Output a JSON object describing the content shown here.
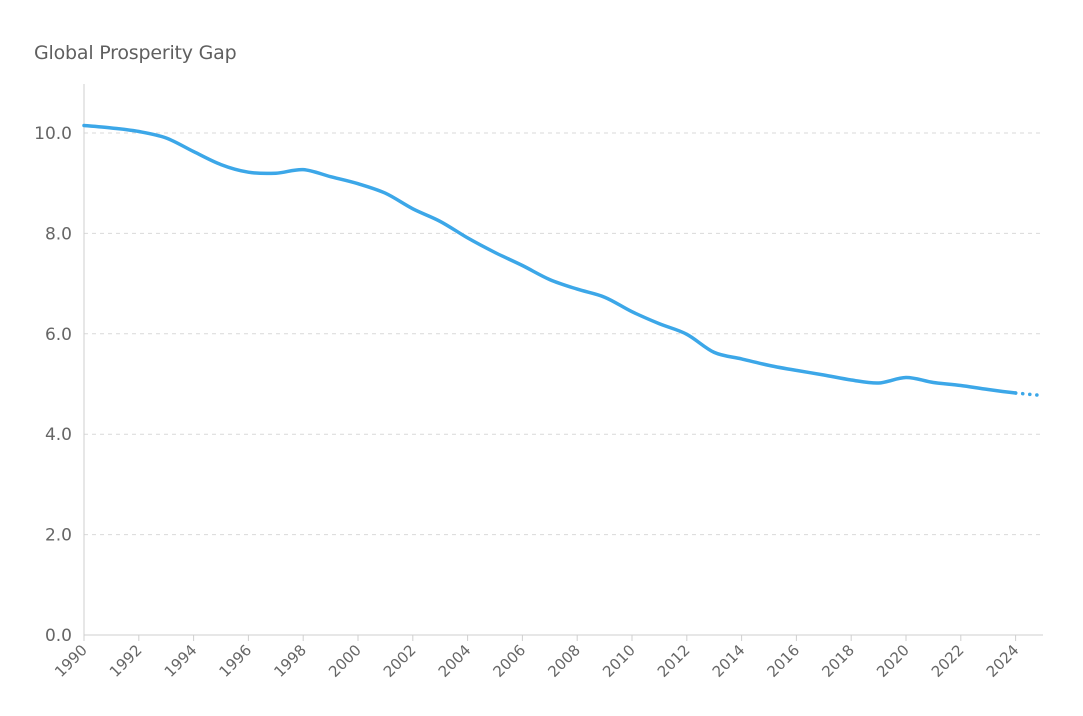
{
  "chart_data": {
    "type": "line",
    "title": "Global Prosperity Gap",
    "xlabel": "",
    "ylabel": "",
    "xlim": [
      1990,
      2025
    ],
    "ylim": [
      0,
      11
    ],
    "y_ticks": [
      "0.0",
      "2.0",
      "4.0",
      "6.0",
      "8.0",
      "10.0"
    ],
    "x_ticks": [
      "1990",
      "1992",
      "1994",
      "1996",
      "1998",
      "2000",
      "2002",
      "2004",
      "2006",
      "2008",
      "2010",
      "2012",
      "2014",
      "2016",
      "2018",
      "2020",
      "2022",
      "2024"
    ],
    "grid": "horizontal-dashed",
    "color": "#3ca7e8",
    "series": [
      {
        "x": [
          1990,
          1991,
          1992,
          1993,
          1994,
          1995,
          1996,
          1997,
          1998,
          1999,
          2000,
          2001,
          2002,
          2003,
          2004,
          2005,
          2006,
          2007,
          2008,
          2009,
          2010,
          2011,
          2012,
          2013,
          2014,
          2015,
          2016,
          2017,
          2018,
          2019,
          2020,
          2021,
          2022,
          2023,
          2024
        ],
        "y": [
          10.15,
          10.1,
          10.03,
          9.9,
          9.63,
          9.37,
          9.22,
          9.2,
          9.27,
          9.13,
          8.99,
          8.8,
          8.49,
          8.24,
          7.91,
          7.62,
          7.36,
          7.08,
          6.89,
          6.73,
          6.44,
          6.2,
          5.99,
          5.63,
          5.5,
          5.37,
          5.27,
          5.18,
          5.08,
          5.02,
          5.13,
          5.03,
          4.97,
          4.89,
          4.82
        ]
      }
    ],
    "projection": {
      "x": [
        2024,
        2025
      ],
      "y": [
        4.82,
        4.77
      ]
    }
  }
}
